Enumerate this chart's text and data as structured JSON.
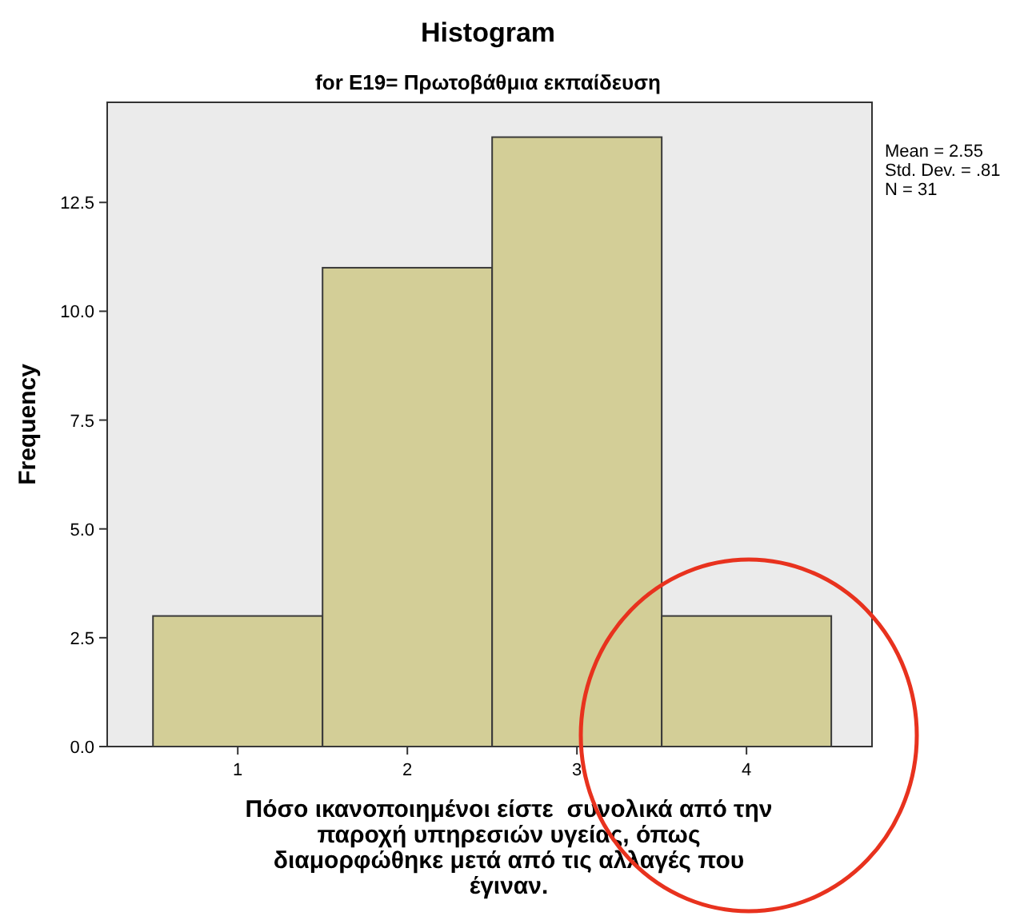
{
  "chart_data": {
    "type": "histogram",
    "title": "Histogram",
    "subtitle": "for E19= Πρωτοβάθμια εκπαίδευση",
    "xlabel": "Πόσο ικανοποιημένοι είστε  συνολικά από την\nπαροχή υπηρεσιών υγείας, όπως\nδιαμορφώθηκε μετά από τις αλλαγές που\nέγιναν.",
    "ylabel": "Frequency",
    "bins": [
      0.5,
      1.5,
      2.5,
      3.5,
      4.5
    ],
    "values": [
      3,
      11,
      14,
      3
    ],
    "color": "#d3ce97",
    "xlim": [
      0.23,
      4.74
    ],
    "xticks": [
      1,
      2,
      3,
      4
    ],
    "ylim": [
      0,
      14.8
    ],
    "yticks": [
      {
        "value": 0,
        "label": "0.0"
      },
      {
        "value": 2.5,
        "label": "2.5"
      },
      {
        "value": 5,
        "label": "5.0"
      },
      {
        "value": 7.5,
        "label": "7.5"
      },
      {
        "value": 10,
        "label": "10.0"
      },
      12.5
    ],
    "annotations": [
      "Mean = 2.55",
      "Std. Dev. = .81",
      "N = 31"
    ],
    "grid": false
  }
}
